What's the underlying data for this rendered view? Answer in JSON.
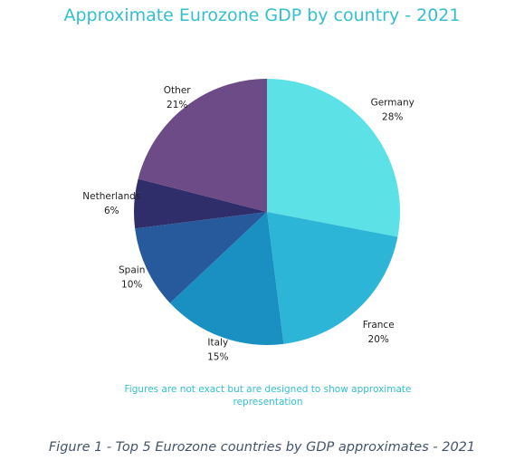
{
  "chart_data": {
    "type": "pie",
    "title": "Approximate Eurozone GDP by country - 2021",
    "categories": [
      "Germany",
      "France",
      "Italy",
      "Spain",
      "Netherlands",
      "Other"
    ],
    "values": [
      28,
      20,
      15,
      10,
      6,
      21
    ],
    "value_labels": [
      "28%",
      "20%",
      "15%",
      "10%",
      "6%",
      "21%"
    ],
    "colors": [
      "#5ce1e6",
      "#2cb5d6",
      "#1a8fc2",
      "#275a9c",
      "#302d6b",
      "#6c4b86"
    ],
    "start_angle_deg": 0,
    "direction": "clockwise",
    "legend": "none",
    "note": "Figures are not exact but are designed to show approximate representation"
  },
  "caption": "Figure 1 - Top 5 Eurozone countries by GDP approximates - 2021"
}
